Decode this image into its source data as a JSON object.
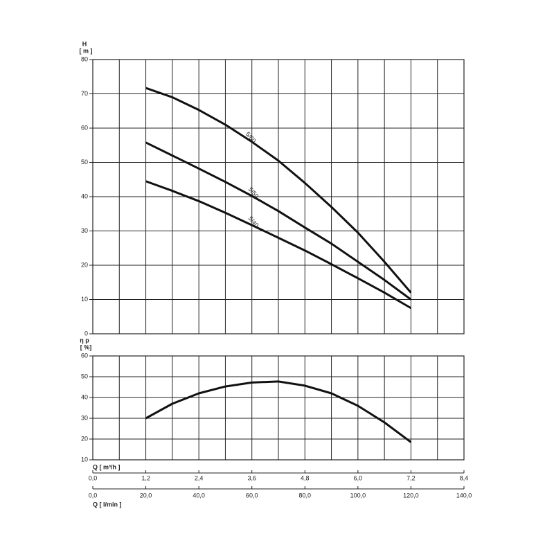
{
  "chart_data": [
    {
      "type": "line",
      "ylabel": "H",
      "yunit": "[ m ]",
      "ylim": [
        0,
        80
      ],
      "yticks": [
        0,
        10,
        20,
        30,
        40,
        50,
        60,
        70,
        80
      ],
      "xlim": [
        0,
        8.4
      ],
      "xminor": true,
      "grid": true,
      "x": [
        1.2,
        1.8,
        2.4,
        3.0,
        3.6,
        4.2,
        4.8,
        5.4,
        6.0,
        6.6,
        7.2
      ],
      "series": [
        {
          "name": "5/60",
          "color": "#111111",
          "values": [
            71.7,
            69,
            65.3,
            61,
            56,
            50.5,
            44,
            37,
            29.5,
            21,
            12
          ]
        },
        {
          "name": "5/50",
          "color": "#111111",
          "values": [
            55.8,
            52,
            48.2,
            44.3,
            40.2,
            35.8,
            31,
            26.3,
            21,
            15.7,
            10
          ]
        },
        {
          "name": "5/40",
          "color": "#111111",
          "values": [
            44.5,
            41.7,
            38.7,
            35.3,
            31.7,
            28,
            24.3,
            20.3,
            16.2,
            12,
            7.5
          ]
        }
      ]
    },
    {
      "type": "line",
      "ylabel": "η p",
      "yunit": "[ %]",
      "ylim": [
        10,
        60
      ],
      "yticks": [
        10,
        20,
        30,
        40,
        50,
        60
      ],
      "xlim": [
        0,
        8.4
      ],
      "xminor": true,
      "grid": true,
      "x": [
        1.2,
        1.8,
        2.4,
        3.0,
        3.6,
        4.2,
        4.8,
        5.4,
        6.0,
        6.6,
        7.2
      ],
      "series": [
        {
          "color": "#111111",
          "values": [
            30,
            37,
            42,
            45.3,
            47.2,
            47.7,
            45.7,
            42,
            36,
            28,
            18.5
          ]
        }
      ],
      "xlabel": "Q [ m³/h ]",
      "xticks": [
        {
          "value": 0,
          "label": "0,0"
        },
        {
          "value": 1.2,
          "label": "1,2"
        },
        {
          "value": 2.4,
          "label": "2,4"
        },
        {
          "value": 3.6,
          "label": "3,6"
        },
        {
          "value": 4.8,
          "label": "4,8"
        },
        {
          "value": 6.0,
          "label": "6,0"
        },
        {
          "value": 7.2,
          "label": "7,2"
        },
        {
          "value": 8.4,
          "label": "8,4"
        }
      ],
      "x2label": "Q [ l/min ]",
      "x2lim": [
        0,
        140
      ],
      "x2ticks": [
        {
          "value": 0,
          "label": "0,0"
        },
        {
          "value": 20,
          "label": "20,0"
        },
        {
          "value": 40,
          "label": "40,0"
        },
        {
          "value": 60,
          "label": "60,0"
        },
        {
          "value": 80,
          "label": "80,0"
        },
        {
          "value": 100,
          "label": "100,0"
        },
        {
          "value": 120,
          "label": "120,0"
        },
        {
          "value": 140,
          "label": "140,0"
        }
      ]
    }
  ]
}
